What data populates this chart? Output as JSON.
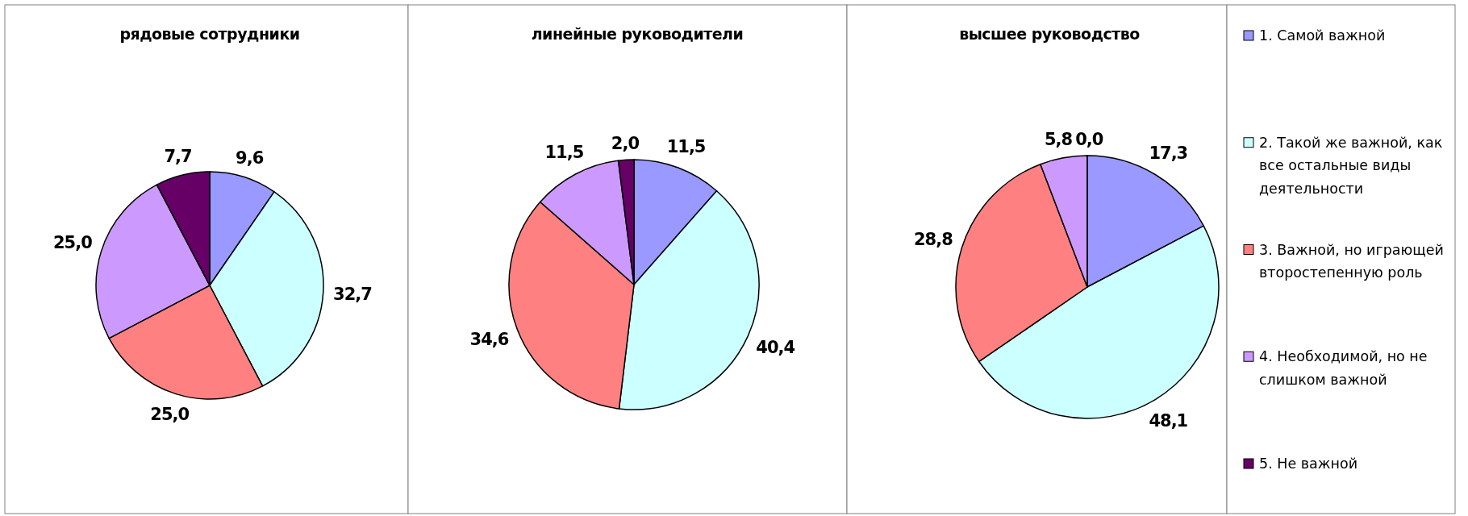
{
  "chart_data": [
    {
      "type": "pie",
      "title": "рядовые сотрудники",
      "categories": [
        null,
        null,
        null,
        null,
        null
      ],
      "values": [
        9.6,
        32.7,
        25.0,
        25.0,
        7.7
      ],
      "colors": [
        "#9999ff",
        "#ccffff",
        "#ff8080",
        "#cc99ff",
        "#660066"
      ],
      "value_labels": [
        "9,6",
        "32,7",
        "25,0",
        "25,0",
        "7,7"
      ]
    },
    {
      "type": "pie",
      "title": "линейные руководители",
      "categories": [
        null,
        null,
        null,
        null,
        null
      ],
      "values": [
        11.5,
        40.4,
        34.6,
        11.5,
        2.0
      ],
      "colors": [
        "#9999ff",
        "#ccffff",
        "#ff8080",
        "#cc99ff",
        "#660066"
      ],
      "value_labels": [
        "11,5",
        "40,4",
        "34,6",
        "11,5",
        "2,0"
      ]
    },
    {
      "type": "pie",
      "title": "высшее руководство",
      "categories": [
        "1. Самой важной",
        "2. Такой же важной, как все остальные виды деятельности",
        "3. Важной, но играющей второстепенную роль",
        "4. Необходимой, но не слишком важной",
        "5. Не важной"
      ],
      "values": [
        17.3,
        48.1,
        28.8,
        5.8,
        0.0
      ],
      "colors": [
        "#9999ff",
        "#ccffff",
        "#ff8080",
        "#cc99ff",
        "#660066"
      ],
      "value_labels": [
        "17,3",
        "48,1",
        "28,8",
        "5,8",
        "0,0"
      ],
      "legend": "right"
    }
  ]
}
